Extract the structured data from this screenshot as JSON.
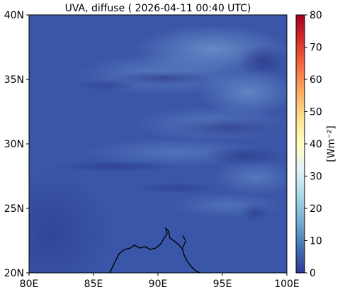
{
  "title": "UVA, diffuse ( 2026-04-11 00:40 UTC)",
  "map": {
    "x_ticks": [
      "80E",
      "85E",
      "90E",
      "95E",
      "100E"
    ],
    "y_ticks": [
      "20N",
      "25N",
      "30N",
      "35N",
      "40N"
    ],
    "lon_range": [
      80,
      100
    ],
    "lat_range": [
      20,
      40
    ]
  },
  "colorbar": {
    "label": "[Wm⁻²]",
    "ticks": [
      "0",
      "10",
      "20",
      "30",
      "40",
      "50",
      "60",
      "70",
      "80"
    ],
    "range": [
      0,
      80
    ],
    "colors": [
      "#313695",
      "#4575b4",
      "#74add1",
      "#abd9e9",
      "#e0f3f8",
      "#ffffbf",
      "#fee090",
      "#fdae61",
      "#f46d43",
      "#d73027",
      "#a50026"
    ]
  },
  "field": {
    "background_value": 6,
    "background_color": "#3a56a8",
    "bright_color": "#6e98cc",
    "dark_color": "#2e3d92"
  }
}
